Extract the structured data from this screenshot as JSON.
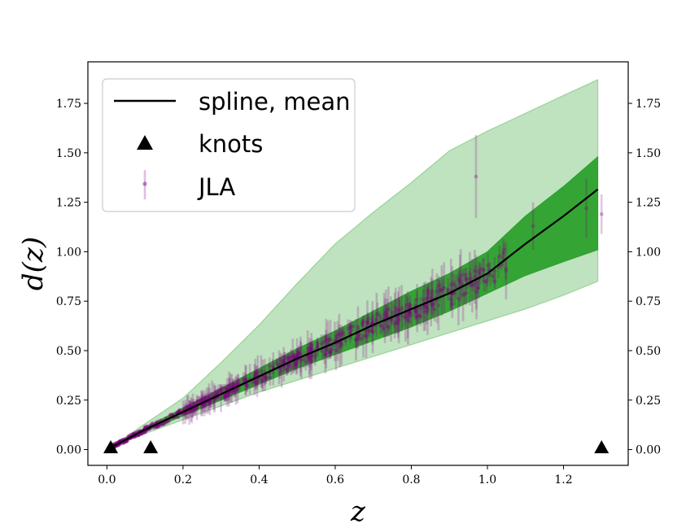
{
  "chart_data": {
    "type": "line",
    "xlabel": "z",
    "ylabel": "d(z)",
    "xlim": [
      -0.05,
      1.37
    ],
    "ylim": [
      -0.08,
      1.96
    ],
    "xticks": [
      0.0,
      0.2,
      0.4,
      0.6,
      0.8,
      1.0,
      1.2
    ],
    "xtick_labels": [
      "0.0",
      "0.2",
      "0.4",
      "0.6",
      "0.8",
      "1.0",
      "1.2"
    ],
    "yticks": [
      0.0,
      0.25,
      0.5,
      0.75,
      1.0,
      1.25,
      1.5,
      1.75
    ],
    "ytick_labels": [
      "0.00",
      "0.25",
      "0.50",
      "0.75",
      "1.00",
      "1.25",
      "1.50",
      "1.75"
    ],
    "legend": {
      "position": "top-left",
      "entries": [
        {
          "label": "spline, mean",
          "kind": "line"
        },
        {
          "label": "knots",
          "kind": "triangle"
        },
        {
          "label": "JLA",
          "kind": "errorbar"
        }
      ]
    },
    "colors": {
      "mean_line": "#000000",
      "inner_band": "#2ca02c",
      "outer_band": "#2ca02c",
      "jla_points": "#800080",
      "knots": "#000000"
    },
    "series": [
      {
        "name": "spline, mean",
        "x": [
          0.01,
          0.05,
          0.1,
          0.2,
          0.3,
          0.4,
          0.5,
          0.6,
          0.7,
          0.8,
          0.9,
          1.0,
          1.1,
          1.2,
          1.29
        ],
        "values": [
          0.01,
          0.05,
          0.1,
          0.19,
          0.28,
          0.37,
          0.46,
          0.54,
          0.63,
          0.71,
          0.79,
          0.89,
          1.04,
          1.18,
          1.315
        ]
      },
      {
        "name": "inner band (1σ)",
        "x": [
          0.01,
          0.1,
          0.2,
          0.3,
          0.4,
          0.5,
          0.6,
          0.7,
          0.8,
          0.9,
          1.0,
          1.1,
          1.2,
          1.29
        ],
        "lower": [
          0.01,
          0.09,
          0.17,
          0.25,
          0.33,
          0.41,
          0.48,
          0.55,
          0.62,
          0.7,
          0.79,
          0.88,
          0.95,
          1.01
        ],
        "upper": [
          0.01,
          0.11,
          0.21,
          0.31,
          0.41,
          0.51,
          0.6,
          0.7,
          0.8,
          0.89,
          1.0,
          1.18,
          1.33,
          1.48
        ]
      },
      {
        "name": "outer band (2σ)",
        "x": [
          0.01,
          0.1,
          0.2,
          0.3,
          0.4,
          0.5,
          0.6,
          0.7,
          0.8,
          0.9,
          1.0,
          1.1,
          1.2,
          1.29
        ],
        "lower": [
          0.01,
          0.08,
          0.15,
          0.22,
          0.29,
          0.35,
          0.41,
          0.47,
          0.53,
          0.59,
          0.65,
          0.71,
          0.78,
          0.85
        ],
        "upper": [
          0.01,
          0.13,
          0.26,
          0.44,
          0.63,
          0.84,
          1.04,
          1.2,
          1.35,
          1.51,
          1.61,
          1.7,
          1.79,
          1.87
        ]
      },
      {
        "name": "knots",
        "x": [
          0.01,
          0.115,
          1.3
        ],
        "values": [
          0.01,
          0.01,
          0.01
        ]
      },
      {
        "name": "JLA",
        "generated_range": {
          "z_min": 0.01,
          "z_max": 1.3,
          "count": 740
        },
        "x": [
          0.97,
          1.12,
          1.26,
          1.3
        ],
        "values": [
          1.38,
          1.13,
          1.22,
          1.19
        ],
        "errors": [
          0.21,
          0.12,
          0.15,
          0.1
        ]
      }
    ]
  }
}
